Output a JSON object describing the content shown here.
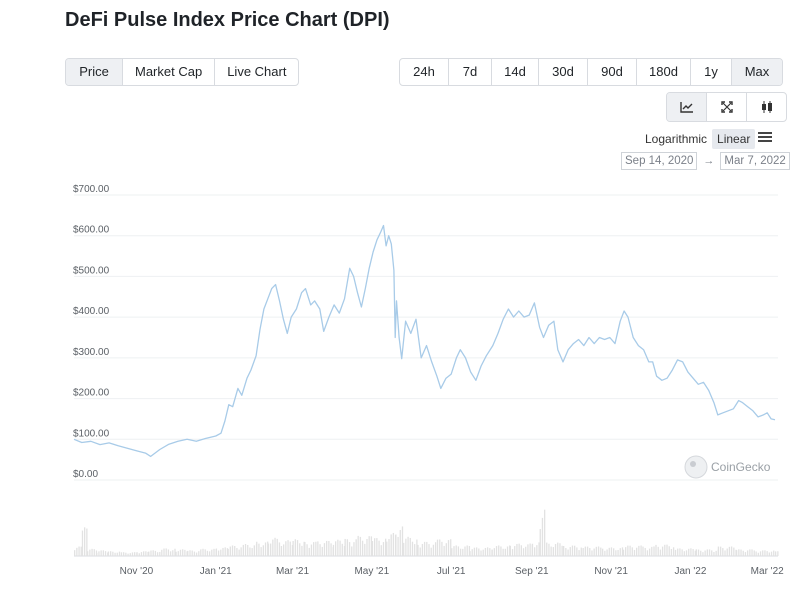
{
  "title": "DeFi Pulse Index Price Chart (DPI)",
  "tabs": [
    {
      "label": "Price",
      "active": true
    },
    {
      "label": "Market Cap",
      "active": false
    },
    {
      "label": "Live Chart",
      "active": false
    }
  ],
  "ranges": [
    {
      "label": "24h",
      "active": false
    },
    {
      "label": "7d",
      "active": false
    },
    {
      "label": "14d",
      "active": false
    },
    {
      "label": "30d",
      "active": false
    },
    {
      "label": "90d",
      "active": false
    },
    {
      "label": "180d",
      "active": false
    },
    {
      "label": "1y",
      "active": false
    },
    {
      "label": "Max",
      "active": true
    }
  ],
  "view_buttons": [
    {
      "icon": "line-chart-icon",
      "active": true
    },
    {
      "icon": "expand-icon",
      "active": false
    },
    {
      "icon": "candlestick-icon",
      "active": false
    }
  ],
  "scale": {
    "log_label": "Logarithmic",
    "linear_label": "Linear",
    "active": "Linear"
  },
  "date_range": {
    "from": "Sep 14, 2020",
    "arrow": "→",
    "to": "Mar 7, 2022"
  },
  "watermark": "CoinGecko",
  "colors": {
    "line": "#a8cbe8",
    "volume": "#e2e2e2",
    "grid": "#eef0f2"
  },
  "chart_data": {
    "type": "line",
    "title": "",
    "ylabel": "",
    "y_ticks": [
      "$0.00",
      "$100.00",
      "$200.00",
      "$300.00",
      "$400.00",
      "$500.00",
      "$600.00",
      "$700.00"
    ],
    "ylim": [
      0,
      700
    ],
    "x_ticks": [
      "Nov '20",
      "Jan '21",
      "Mar '21",
      "May '21",
      "Jul '21",
      "Sep '21",
      "Nov '21",
      "Jan '22",
      "Mar '22"
    ],
    "xlim": [
      "2020-09-14",
      "2022-03-07"
    ],
    "grid": true,
    "series": [
      {
        "values": [
          [
            "2020-09-14",
            100
          ],
          [
            "2020-09-20",
            92
          ],
          [
            "2020-09-27",
            95
          ],
          [
            "2020-10-04",
            87
          ],
          [
            "2020-10-11",
            91
          ],
          [
            "2020-10-18",
            84
          ],
          [
            "2020-10-25",
            78
          ],
          [
            "2020-11-01",
            72
          ],
          [
            "2020-11-08",
            66
          ],
          [
            "2020-11-12",
            58
          ],
          [
            "2020-11-19",
            75
          ],
          [
            "2020-11-26",
            88
          ],
          [
            "2020-12-03",
            95
          ],
          [
            "2020-12-10",
            100
          ],
          [
            "2020-12-17",
            95
          ],
          [
            "2020-12-24",
            102
          ],
          [
            "2021-01-01",
            108
          ],
          [
            "2021-01-05",
            115
          ],
          [
            "2021-01-08",
            145
          ],
          [
            "2021-01-11",
            185
          ],
          [
            "2021-01-14",
            180
          ],
          [
            "2021-01-18",
            225
          ],
          [
            "2021-01-21",
            208
          ],
          [
            "2021-01-25",
            250
          ],
          [
            "2021-01-28",
            270
          ],
          [
            "2021-02-01",
            305
          ],
          [
            "2021-02-04",
            370
          ],
          [
            "2021-02-07",
            420
          ],
          [
            "2021-02-10",
            445
          ],
          [
            "2021-02-13",
            470
          ],
          [
            "2021-02-16",
            480
          ],
          [
            "2021-02-19",
            440
          ],
          [
            "2021-02-22",
            395
          ],
          [
            "2021-02-25",
            360
          ],
          [
            "2021-02-28",
            400
          ],
          [
            "2021-03-04",
            420
          ],
          [
            "2021-03-08",
            460
          ],
          [
            "2021-03-11",
            470
          ],
          [
            "2021-03-15",
            430
          ],
          [
            "2021-03-18",
            440
          ],
          [
            "2021-03-22",
            420
          ],
          [
            "2021-03-25",
            365
          ],
          [
            "2021-03-29",
            400
          ],
          [
            "2021-04-02",
            430
          ],
          [
            "2021-04-06",
            410
          ],
          [
            "2021-04-10",
            445
          ],
          [
            "2021-04-14",
            520
          ],
          [
            "2021-04-17",
            500
          ],
          [
            "2021-04-20",
            460
          ],
          [
            "2021-04-23",
            425
          ],
          [
            "2021-04-26",
            470
          ],
          [
            "2021-04-29",
            520
          ],
          [
            "2021-05-02",
            560
          ],
          [
            "2021-05-05",
            590
          ],
          [
            "2021-05-08",
            610
          ],
          [
            "2021-05-10",
            625
          ],
          [
            "2021-05-12",
            575
          ],
          [
            "2021-05-14",
            600
          ],
          [
            "2021-05-16",
            580
          ],
          [
            "2021-05-18",
            515
          ],
          [
            "2021-05-19",
            350
          ],
          [
            "2021-05-20",
            440
          ],
          [
            "2021-05-22",
            350
          ],
          [
            "2021-05-24",
            298
          ],
          [
            "2021-05-27",
            390
          ],
          [
            "2021-05-31",
            360
          ],
          [
            "2021-06-04",
            395
          ],
          [
            "2021-06-08",
            300
          ],
          [
            "2021-06-12",
            330
          ],
          [
            "2021-06-16",
            290
          ],
          [
            "2021-06-20",
            255
          ],
          [
            "2021-06-23",
            225
          ],
          [
            "2021-06-27",
            250
          ],
          [
            "2021-07-01",
            260
          ],
          [
            "2021-07-05",
            300
          ],
          [
            "2021-07-08",
            320
          ],
          [
            "2021-07-12",
            300
          ],
          [
            "2021-07-16",
            265
          ],
          [
            "2021-07-20",
            245
          ],
          [
            "2021-07-24",
            280
          ],
          [
            "2021-07-28",
            305
          ],
          [
            "2021-08-02",
            330
          ],
          [
            "2021-08-06",
            360
          ],
          [
            "2021-08-10",
            395
          ],
          [
            "2021-08-14",
            420
          ],
          [
            "2021-08-18",
            400
          ],
          [
            "2021-08-22",
            415
          ],
          [
            "2021-08-26",
            400
          ],
          [
            "2021-08-30",
            405
          ],
          [
            "2021-09-03",
            435
          ],
          [
            "2021-09-07",
            375
          ],
          [
            "2021-09-10",
            350
          ],
          [
            "2021-09-14",
            380
          ],
          [
            "2021-09-18",
            390
          ],
          [
            "2021-09-21",
            320
          ],
          [
            "2021-09-25",
            290
          ],
          [
            "2021-09-29",
            320
          ],
          [
            "2021-10-03",
            335
          ],
          [
            "2021-10-07",
            345
          ],
          [
            "2021-10-11",
            330
          ],
          [
            "2021-10-15",
            350
          ],
          [
            "2021-10-19",
            335
          ],
          [
            "2021-10-23",
            350
          ],
          [
            "2021-10-27",
            345
          ],
          [
            "2021-10-31",
            350
          ],
          [
            "2021-11-04",
            335
          ],
          [
            "2021-11-08",
            390
          ],
          [
            "2021-11-11",
            415
          ],
          [
            "2021-11-14",
            400
          ],
          [
            "2021-11-18",
            350
          ],
          [
            "2021-11-22",
            330
          ],
          [
            "2021-11-26",
            320
          ],
          [
            "2021-11-30",
            290
          ],
          [
            "2021-12-03",
            290
          ],
          [
            "2021-12-06",
            255
          ],
          [
            "2021-12-10",
            245
          ],
          [
            "2021-12-14",
            250
          ],
          [
            "2021-12-18",
            270
          ],
          [
            "2021-12-22",
            295
          ],
          [
            "2021-12-26",
            290
          ],
          [
            "2021-12-30",
            265
          ],
          [
            "2022-01-03",
            250
          ],
          [
            "2022-01-07",
            235
          ],
          [
            "2022-01-11",
            240
          ],
          [
            "2022-01-15",
            220
          ],
          [
            "2022-01-19",
            190
          ],
          [
            "2022-01-22",
            160
          ],
          [
            "2022-01-26",
            165
          ],
          [
            "2022-01-30",
            170
          ],
          [
            "2022-02-03",
            175
          ],
          [
            "2022-02-07",
            195
          ],
          [
            "2022-02-10",
            190
          ],
          [
            "2022-02-14",
            180
          ],
          [
            "2022-02-18",
            170
          ],
          [
            "2022-02-22",
            155
          ],
          [
            "2022-02-26",
            160
          ],
          [
            "2022-03-01",
            165
          ],
          [
            "2022-03-04",
            150
          ],
          [
            "2022-03-07",
            148
          ]
        ]
      }
    ],
    "volume": {
      "y_ticks": [],
      "values": [
        [
          "2020-09-14",
          0.2
        ],
        [
          "2020-09-20",
          0.6
        ],
        [
          "2020-09-24",
          0.15
        ],
        [
          "2020-10-01",
          0.12
        ],
        [
          "2020-10-10",
          0.1
        ],
        [
          "2020-10-20",
          0.08
        ],
        [
          "2020-11-01",
          0.1
        ],
        [
          "2020-11-10",
          0.12
        ],
        [
          "2020-11-20",
          0.16
        ],
        [
          "2020-12-01",
          0.14
        ],
        [
          "2020-12-10",
          0.12
        ],
        [
          "2020-12-20",
          0.15
        ],
        [
          "2021-01-01",
          0.18
        ],
        [
          "2021-01-10",
          0.22
        ],
        [
          "2021-01-20",
          0.25
        ],
        [
          "2021-02-01",
          0.3
        ],
        [
          "2021-02-10",
          0.38
        ],
        [
          "2021-02-20",
          0.33
        ],
        [
          "2021-03-01",
          0.35
        ],
        [
          "2021-03-10",
          0.3
        ],
        [
          "2021-03-20",
          0.32
        ],
        [
          "2021-04-01",
          0.34
        ],
        [
          "2021-04-10",
          0.36
        ],
        [
          "2021-04-20",
          0.42
        ],
        [
          "2021-05-01",
          0.38
        ],
        [
          "2021-05-12",
          0.48
        ],
        [
          "2021-05-19",
          0.62
        ],
        [
          "2021-05-25",
          0.4
        ],
        [
          "2021-06-05",
          0.3
        ],
        [
          "2021-06-20",
          0.35
        ],
        [
          "2021-07-01",
          0.22
        ],
        [
          "2021-07-15",
          0.18
        ],
        [
          "2021-08-01",
          0.22
        ],
        [
          "2021-08-15",
          0.26
        ],
        [
          "2021-09-01",
          0.3
        ],
        [
          "2021-09-07",
          1.0
        ],
        [
          "2021-09-12",
          0.28
        ],
        [
          "2021-09-25",
          0.22
        ],
        [
          "2021-10-10",
          0.2
        ],
        [
          "2021-10-25",
          0.18
        ],
        [
          "2021-11-10",
          0.22
        ],
        [
          "2021-11-25",
          0.2
        ],
        [
          "2021-12-05",
          0.24
        ],
        [
          "2021-12-20",
          0.16
        ],
        [
          "2022-01-05",
          0.14
        ],
        [
          "2022-01-22",
          0.2
        ],
        [
          "2022-02-05",
          0.14
        ],
        [
          "2022-02-20",
          0.12
        ],
        [
          "2022-03-07",
          0.1
        ]
      ]
    }
  }
}
